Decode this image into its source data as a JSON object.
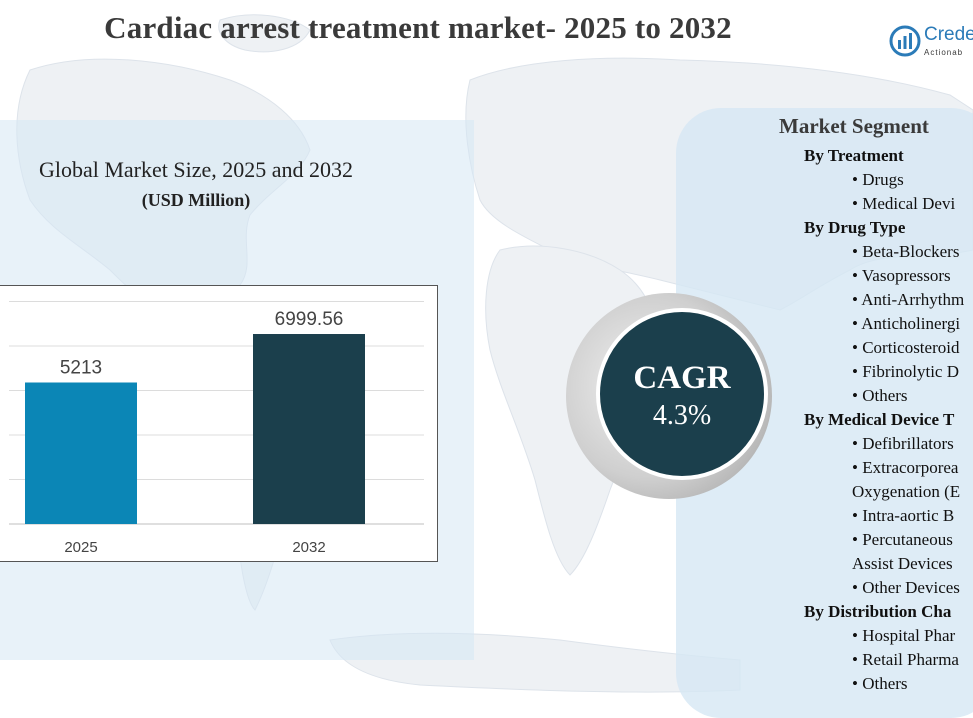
{
  "header": {
    "title": "Cardiac arrest treatment market- 2025 to 2032",
    "logo_text": "Crede",
    "logo_tagline": "Actionab"
  },
  "chart_data": {
    "type": "bar",
    "title": "Global Market Size, 2025 and 2032",
    "subtitle": "(USD Million)",
    "categories": [
      "2025",
      "2032"
    ],
    "values": [
      5213,
      6999.56
    ],
    "value_labels": [
      "5213",
      "6999.56"
    ],
    "colors": [
      "#0b86b6",
      "#1b3f4c"
    ],
    "grid": true,
    "legend": "none"
  },
  "cagr": {
    "label": "CAGR",
    "value": "4.3%"
  },
  "segments": {
    "title": "Market Segment",
    "lines": [
      {
        "kind": "head",
        "text": "By Treatment"
      },
      {
        "kind": "item",
        "text": "• Drugs"
      },
      {
        "kind": "item",
        "text": "• Medical Devi"
      },
      {
        "kind": "head",
        "text": "By Drug  Type"
      },
      {
        "kind": "item",
        "text": "• Beta-Blockers"
      },
      {
        "kind": "item",
        "text": "• Vasopressors"
      },
      {
        "kind": "item",
        "text": "• Anti-Arrhythm"
      },
      {
        "kind": "item",
        "text": "• Anticholinergi"
      },
      {
        "kind": "item",
        "text": "• Corticosteroid"
      },
      {
        "kind": "item",
        "text": "• Fibrinolytic D"
      },
      {
        "kind": "item",
        "text": "• Others"
      },
      {
        "kind": "head",
        "text": "By Medical Device T"
      },
      {
        "kind": "item",
        "text": "• Defibrillators"
      },
      {
        "kind": "item",
        "text": "• Extracorporea"
      },
      {
        "kind": "cont",
        "text": "Oxygenation  (E"
      },
      {
        "kind": "item",
        "text": "• Intra-aortic B"
      },
      {
        "kind": "item",
        "text": "• Percutaneous"
      },
      {
        "kind": "cont",
        "text": "Assist Devices"
      },
      {
        "kind": "item",
        "text": "• Other Devices"
      },
      {
        "kind": "head",
        "text": "By Distribution  Cha"
      },
      {
        "kind": "item",
        "text": "• Hospital Phar"
      },
      {
        "kind": "item",
        "text": "• Retail Pharma"
      },
      {
        "kind": "item",
        "text": "• Others"
      }
    ]
  }
}
